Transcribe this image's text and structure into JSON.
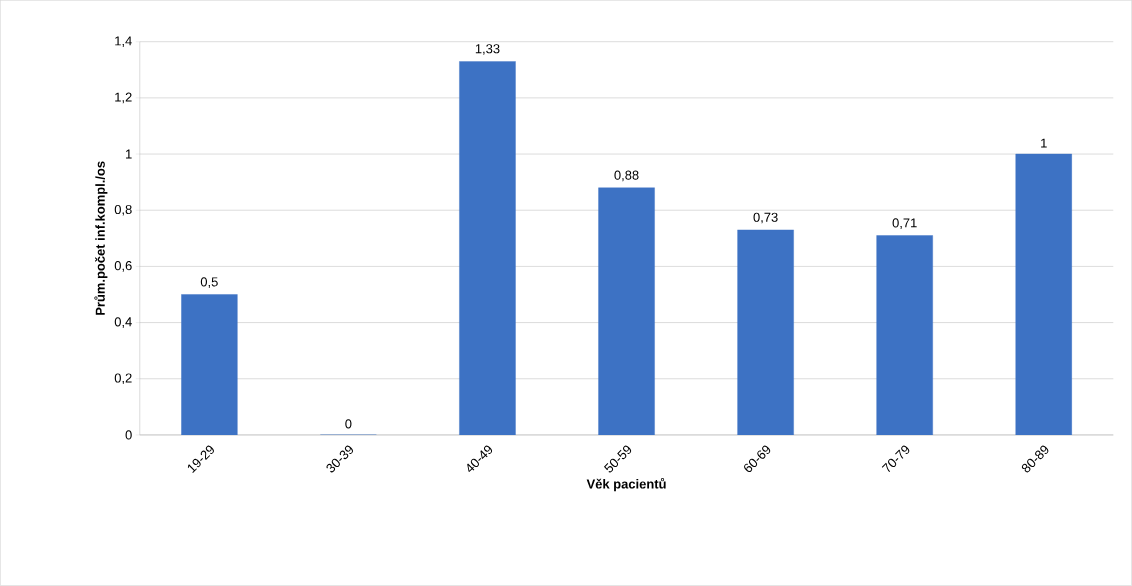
{
  "chart_data": {
    "type": "bar",
    "xlabel": "Věk pacientů",
    "ylabel": "Prům.počet inf.kompl./os",
    "categories": [
      "19-29",
      "30-39",
      "40-49",
      "50-59",
      "60-69",
      "70-79",
      "80-89"
    ],
    "values": [
      0.5,
      0,
      1.33,
      0.88,
      0.73,
      0.71,
      1
    ],
    "value_labels": [
      "0,5",
      "0",
      "1,33",
      "0,88",
      "0,73",
      "0,71",
      "1"
    ],
    "color": "#3d72c4",
    "ylim": [
      0,
      1.4
    ],
    "yticks": [
      0,
      {
        "value": 0.2,
        "label": "0,2"
      },
      {
        "value": 0.4,
        "label": "0,4"
      },
      {
        "value": 0.6,
        "label": "0,6"
      },
      {
        "value": 0.8,
        "label": "0,8"
      },
      1,
      {
        "value": 1.2,
        "label": "1,2"
      },
      {
        "value": 1.4,
        "label": "1,4"
      }
    ],
    "grid": "y"
  }
}
